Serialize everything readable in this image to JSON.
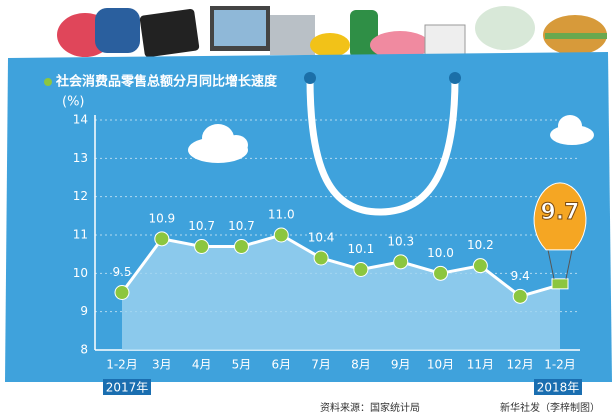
{
  "chart_data": {
    "type": "line",
    "title": "社会消费品零售总额分月同比增长速度",
    "y_label": "(%)",
    "categories": [
      "1-2月",
      "3月",
      "4月",
      "5月",
      "6月",
      "7月",
      "8月",
      "9月",
      "10月",
      "11月",
      "12月",
      "1-2月"
    ],
    "values": [
      9.5,
      10.9,
      10.7,
      10.7,
      11.0,
      10.4,
      10.1,
      10.3,
      10.0,
      10.2,
      9.4,
      9.7
    ],
    "value_labels": [
      "9.5",
      "10.9",
      "10.7",
      "10.7",
      "11.0",
      "10.4",
      "10.1",
      "10.3",
      "10.0",
      "10.2",
      "9.4",
      "9.7"
    ],
    "ylim": [
      8,
      14
    ],
    "yticks": [
      8,
      9,
      10,
      11,
      12,
      13,
      14
    ],
    "grid": true,
    "color": "#ffffff",
    "marker_color": "#8cc63f",
    "area_color": "#9fd3f0",
    "year_labels": [
      "2017年",
      "2018年"
    ],
    "source": "资料来源：国家统计局",
    "credit": "新华社发（李梓制图）"
  }
}
